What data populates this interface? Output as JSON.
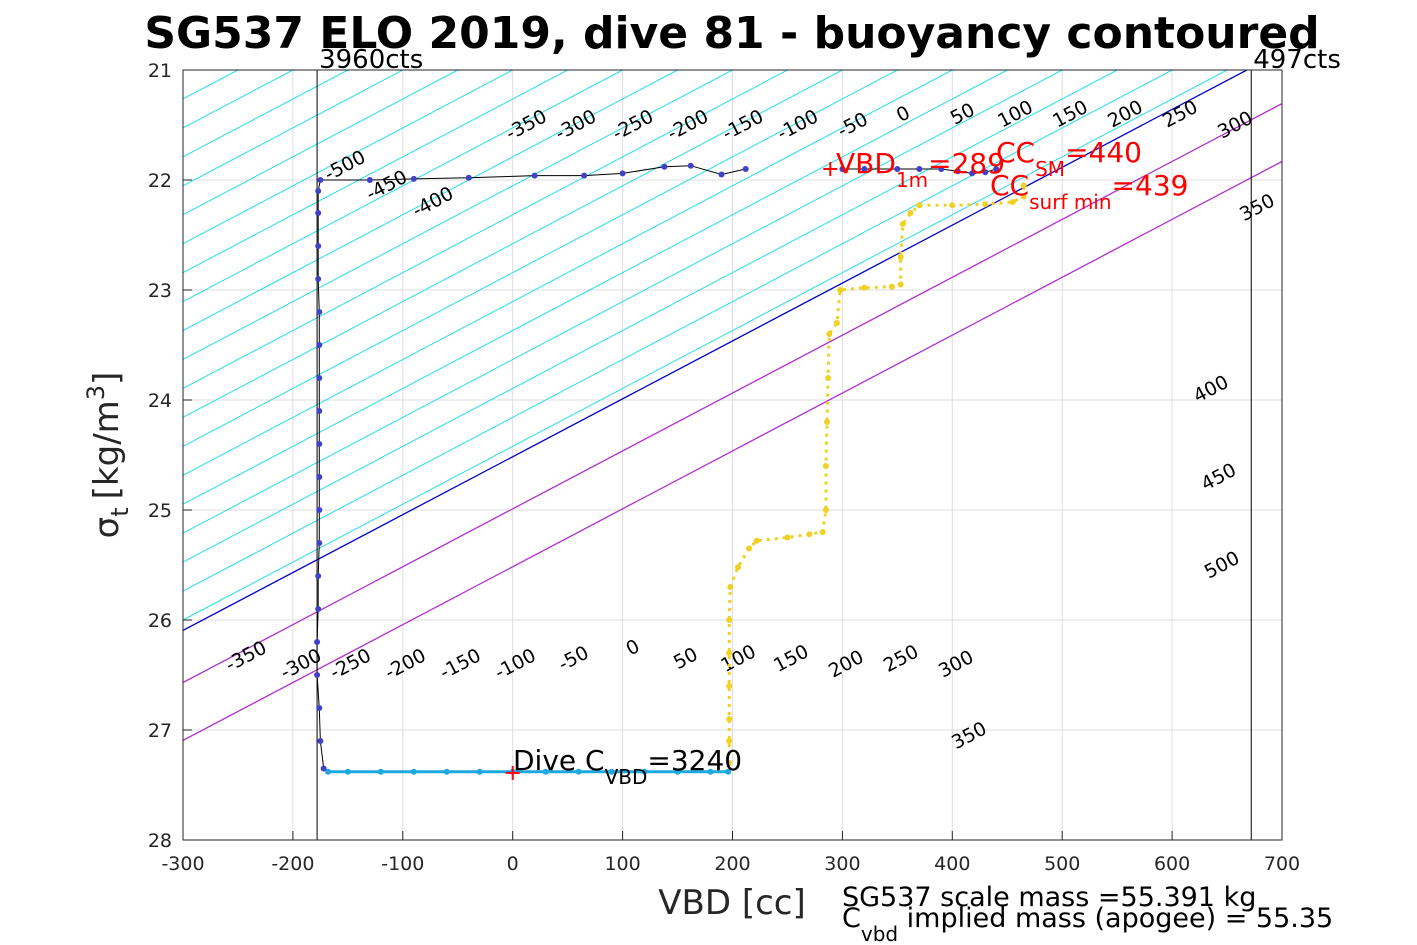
{
  "chart_data": {
    "type": "scatter",
    "title": "SG537 ELO 2019, dive 81 - buoyancy contoured",
    "xlabel": "VBD [cc]",
    "ylabel_symbol": "σ",
    "ylabel_sub": "t",
    "ylabel_unit": "[kg/m",
    "ylabel_sup": "3",
    "ylabel_close": "]",
    "xlim": [
      -300,
      700
    ],
    "ylim": [
      21,
      28
    ],
    "y_reversed": true,
    "grid": true,
    "xticks": [
      -300,
      -200,
      -100,
      0,
      100,
      200,
      300,
      400,
      500,
      600,
      700
    ],
    "xtick_labels": [
      "-300",
      "-200",
      "-100",
      "0",
      "100",
      "200",
      "300",
      "400",
      "500",
      "600",
      "700"
    ],
    "yticks": [
      21,
      22,
      23,
      24,
      25,
      26,
      27,
      28
    ],
    "ytick_labels": [
      "21",
      "22",
      "23",
      "24",
      "25",
      "26",
      "27",
      "28"
    ],
    "vbd_limits": [
      {
        "vbd": -178,
        "label": "3960cts"
      },
      {
        "vbd": 672,
        "label": "497cts"
      }
    ],
    "contour_slope_cc_per_sigma": -190,
    "contour_step_cc": 50,
    "contour_range_cc": [
      -900,
      650
    ],
    "contours_top_labels": [
      {
        "value": -500,
        "label": "-500",
        "vbd": -150,
        "sigma": 21.92
      },
      {
        "value": -450,
        "label": "-450",
        "vbd": -112,
        "sigma": 22.1
      },
      {
        "value": -400,
        "label": "-400",
        "vbd": -70,
        "sigma": 22.25
      },
      {
        "value": -350,
        "label": "-350",
        "vbd": 15,
        "sigma": 21.55
      },
      {
        "value": -300,
        "label": "-300",
        "vbd": 60,
        "sigma": 21.55
      },
      {
        "value": -250,
        "label": "-250",
        "vbd": 112,
        "sigma": 21.55
      },
      {
        "value": -200,
        "label": "-200",
        "vbd": 162,
        "sigma": 21.55
      },
      {
        "value": -150,
        "label": "-150",
        "vbd": 212,
        "sigma": 21.55
      },
      {
        "value": -100,
        "label": "-100",
        "vbd": 262,
        "sigma": 21.55
      },
      {
        "value": -50,
        "label": "-50",
        "vbd": 312,
        "sigma": 21.55
      },
      {
        "value": 0,
        "label": "0",
        "vbd": 358,
        "sigma": 21.45
      },
      {
        "value": 50,
        "label": "50",
        "vbd": 412,
        "sigma": 21.45
      },
      {
        "value": 100,
        "label": "100",
        "vbd": 460,
        "sigma": 21.45
      },
      {
        "value": 150,
        "label": "150",
        "vbd": 510,
        "sigma": 21.45
      },
      {
        "value": 200,
        "label": "200",
        "vbd": 560,
        "sigma": 21.45
      },
      {
        "value": 250,
        "label": "250",
        "vbd": 610,
        "sigma": 21.45
      },
      {
        "value": 300,
        "label": "300",
        "vbd": 660,
        "sigma": 21.55
      },
      {
        "value": 350,
        "label": "350",
        "vbd": 680,
        "sigma": 22.3
      },
      {
        "value": 400,
        "label": "400",
        "vbd": 638,
        "sigma": 23.95
      },
      {
        "value": 450,
        "label": "450",
        "vbd": 645,
        "sigma": 24.75
      },
      {
        "value": 500,
        "label": "500",
        "vbd": 648,
        "sigma": 25.55
      }
    ],
    "contours_bottom_labels": [
      {
        "value": -350,
        "label": "-350",
        "vbd": -240,
        "sigma": 26.38
      },
      {
        "value": -300,
        "label": "-300",
        "vbd": -190,
        "sigma": 26.45
      },
      {
        "value": -250,
        "label": "-250",
        "vbd": -145,
        "sigma": 26.45
      },
      {
        "value": -200,
        "label": "-200",
        "vbd": -95,
        "sigma": 26.45
      },
      {
        "value": -150,
        "label": "-150",
        "vbd": -45,
        "sigma": 26.45
      },
      {
        "value": -100,
        "label": "-100",
        "vbd": 5,
        "sigma": 26.45
      },
      {
        "value": -50,
        "label": "-50",
        "vbd": 58,
        "sigma": 26.4
      },
      {
        "value": 0,
        "label": "0",
        "vbd": 112,
        "sigma": 26.3
      },
      {
        "value": 50,
        "label": "50",
        "vbd": 160,
        "sigma": 26.4
      },
      {
        "value": 100,
        "label": "100",
        "vbd": 208,
        "sigma": 26.4
      },
      {
        "value": 150,
        "label": "150",
        "vbd": 256,
        "sigma": 26.4
      },
      {
        "value": 200,
        "label": "200",
        "vbd": 306,
        "sigma": 26.45
      },
      {
        "value": 250,
        "label": "250",
        "vbd": 356,
        "sigma": 26.4
      },
      {
        "value": 300,
        "label": "300",
        "vbd": 406,
        "sigma": 26.45
      },
      {
        "value": 350,
        "label": "350",
        "vbd": 418,
        "sigma": 27.1
      }
    ],
    "special_contours": [
      {
        "name": "neutral",
        "offset_cc": 0,
        "color": "#0000cc"
      },
      {
        "name": "SM",
        "offset_cc": 90,
        "color": "#b030d0"
      },
      {
        "name": "surf min",
        "offset_cc": 190,
        "color": "#b030d0"
      }
    ],
    "series": [
      {
        "name": "dive",
        "color": "#4040c8",
        "points": [
          [
            212,
            21.9
          ],
          [
            190,
            21.95
          ],
          [
            162,
            21.87
          ],
          [
            138,
            21.88
          ],
          [
            100,
            21.94
          ],
          [
            65,
            21.96
          ],
          [
            20,
            21.96
          ],
          [
            -40,
            21.98
          ],
          [
            -90,
            21.99
          ],
          [
            -130,
            22.0
          ],
          [
            -175,
            22.0
          ],
          [
            -177,
            22.1
          ],
          [
            -177,
            22.3
          ],
          [
            -177,
            22.6
          ],
          [
            -177,
            22.9
          ],
          [
            -176,
            23.2
          ],
          [
            -176,
            23.5
          ],
          [
            -176,
            23.8
          ],
          [
            -176,
            24.1
          ],
          [
            -176,
            24.4
          ],
          [
            -176,
            24.7
          ],
          [
            -176,
            25.0
          ],
          [
            -176,
            25.3
          ],
          [
            -177,
            25.6
          ],
          [
            -177,
            25.9
          ],
          [
            -178,
            26.2
          ],
          [
            -178,
            26.5
          ],
          [
            -176,
            26.8
          ],
          [
            -175,
            27.1
          ],
          [
            -172,
            27.35
          ]
        ]
      },
      {
        "name": "apogee",
        "color": "#1fa8e0",
        "points": [
          [
            -168,
            27.38
          ],
          [
            -150,
            27.38
          ],
          [
            -120,
            27.38
          ],
          [
            -90,
            27.38
          ],
          [
            -60,
            27.38
          ],
          [
            -30,
            27.38
          ],
          [
            0,
            27.38
          ],
          [
            30,
            27.38
          ],
          [
            60,
            27.38
          ],
          [
            90,
            27.38
          ],
          [
            120,
            27.38
          ],
          [
            150,
            27.38
          ],
          [
            180,
            27.38
          ],
          [
            196,
            27.38
          ]
        ]
      },
      {
        "name": "climb",
        "color": "#f0d020",
        "points": [
          [
            197,
            27.3
          ],
          [
            197,
            27.1
          ],
          [
            197,
            26.9
          ],
          [
            197,
            26.6
          ],
          [
            197,
            26.3
          ],
          [
            197,
            26.0
          ],
          [
            198,
            25.7
          ],
          [
            205,
            25.52
          ],
          [
            215,
            25.35
          ],
          [
            222,
            25.28
          ],
          [
            250,
            25.25
          ],
          [
            270,
            25.22
          ],
          [
            282,
            25.2
          ],
          [
            285,
            25.0
          ],
          [
            285,
            24.6
          ],
          [
            286,
            24.2
          ],
          [
            287,
            23.8
          ],
          [
            288,
            23.4
          ],
          [
            295,
            23.3
          ],
          [
            298,
            23.0
          ],
          [
            320,
            22.98
          ],
          [
            345,
            22.97
          ],
          [
            353,
            22.95
          ],
          [
            353,
            22.7
          ],
          [
            355,
            22.4
          ],
          [
            362,
            22.3
          ],
          [
            370,
            22.23
          ],
          [
            400,
            22.23
          ],
          [
            430,
            22.22
          ],
          [
            455,
            22.2
          ],
          [
            465,
            22.15
          ],
          [
            465,
            22.05
          ]
        ]
      },
      {
        "name": "surface",
        "color": "#4040c8",
        "points": [
          [
            300,
            21.9
          ],
          [
            320,
            21.9
          ],
          [
            350,
            21.9
          ],
          [
            370,
            21.9
          ],
          [
            390,
            21.9
          ],
          [
            405,
            21.92
          ],
          [
            418,
            21.94
          ],
          [
            430,
            21.93
          ],
          [
            440,
            21.9
          ]
        ]
      }
    ],
    "markers": [
      {
        "name": "VBD 1m",
        "vbd": 289,
        "sigma": 21.9,
        "color": "#ff0000"
      },
      {
        "name": "Dive C VBD",
        "vbd": 0,
        "sigma": 27.39,
        "color": "#ff0000"
      }
    ]
  },
  "annotations": {
    "vbd1m_main": "VBD",
    "vbd1m_sub": "1m",
    "vbd1m_value": "=289",
    "ccsm_main": "CC",
    "ccsm_sub": "SM",
    "ccsm_value": "=440",
    "ccsurf_main": "CC",
    "ccsurf_sub": "surf min",
    "ccsurf_value": "=439",
    "dive_main": "Dive C",
    "dive_sub": "VBD",
    "dive_value": "=3240",
    "red_color": "#ff0000"
  },
  "footer": {
    "line1": "SG537 scale mass =55.391 kg",
    "line2_main": "C",
    "line2_sub": "vbd",
    "line2_rest": " implied mass (apogee) = 55.35"
  }
}
